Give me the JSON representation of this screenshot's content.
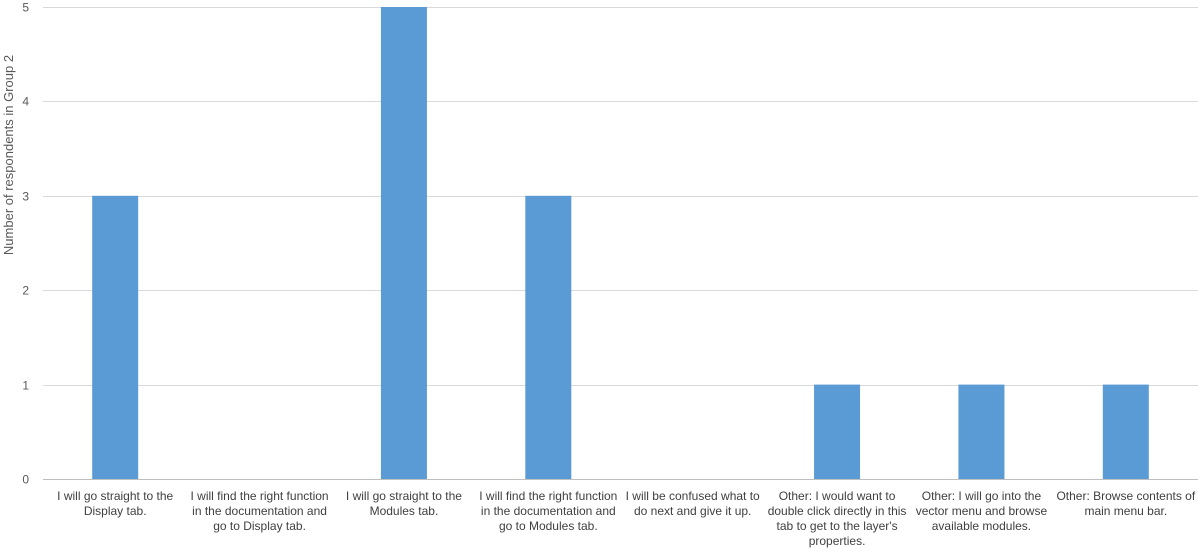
{
  "chart_data": {
    "type": "bar",
    "title": "",
    "xlabel": "",
    "ylabel": "Number of respondents in Group 2",
    "ylim": [
      0,
      5
    ],
    "yticks": [
      0,
      1,
      2,
      3,
      4,
      5
    ],
    "grid": true,
    "legend": "none",
    "bar_color": "#5b9bd5",
    "categories": [
      "I will go straight to the Display tab.",
      "I will find the right function in the documentation and go to Display tab.",
      "I will go straight to the Modules tab.",
      "I will find the right function in the documentation and go to Modules tab.",
      "I will be confused what to do next and give it up.",
      "Other: I would want to double click directly in this tab to get to the layer's properties.",
      "Other: I will go into the vector menu and browse available modules.",
      "Other: Browse contents of main menu bar."
    ],
    "values": [
      3,
      0,
      5,
      3,
      0,
      1,
      1,
      1
    ]
  }
}
